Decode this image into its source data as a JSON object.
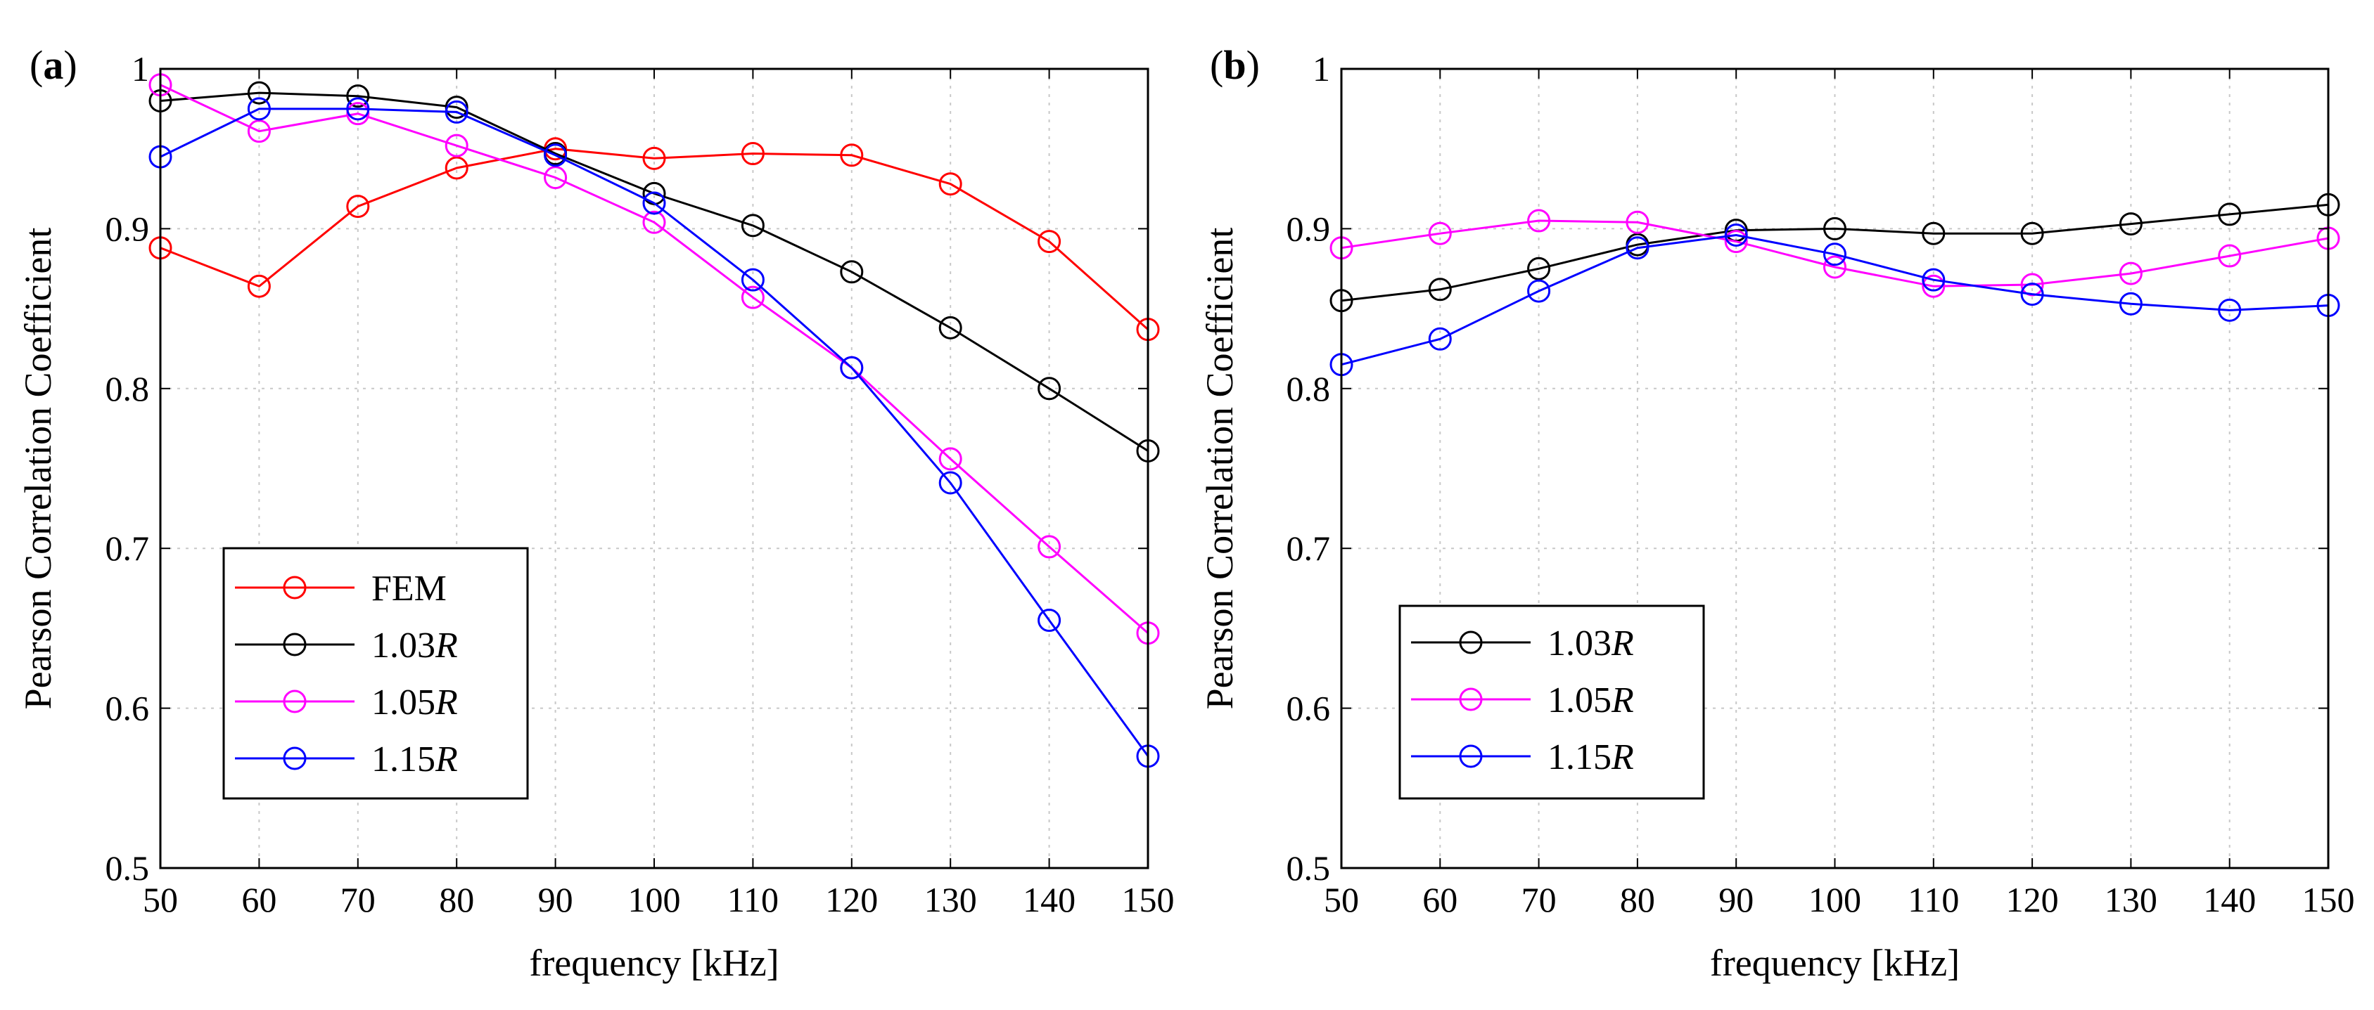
{
  "chart_data": [
    {
      "panel_label": "(a)",
      "type": "line",
      "xlabel": "frequency [kHz]",
      "ylabel": "Pearson Correlation Coefficient",
      "x": [
        50,
        60,
        70,
        80,
        90,
        100,
        110,
        120,
        130,
        140,
        150
      ],
      "xlim": [
        50,
        150
      ],
      "ylim": [
        0.5,
        1
      ],
      "xticks": [
        50,
        60,
        70,
        80,
        90,
        100,
        110,
        120,
        130,
        140,
        150
      ],
      "yticks": [
        0.5,
        0.6,
        0.7,
        0.8,
        0.9,
        1
      ],
      "ytick_labels": [
        "0.5",
        "0.6",
        "0.7",
        "0.8",
        "0.9",
        "1"
      ],
      "grid": true,
      "legend_position": "bottom-left",
      "series": [
        {
          "name": "FEM",
          "color": "#ff0000",
          "values": [
            0.888,
            0.864,
            0.914,
            0.938,
            0.95,
            0.944,
            0.947,
            0.946,
            0.928,
            0.892,
            0.837
          ]
        },
        {
          "name": "1.03",
          "name_italic": "R",
          "color": "#000000",
          "values": [
            0.98,
            0.985,
            0.983,
            0.976,
            0.947,
            0.922,
            0.902,
            0.873,
            0.838,
            0.8,
            0.761
          ]
        },
        {
          "name": "1.05",
          "name_italic": "R",
          "color": "#ff00ff",
          "values": [
            0.99,
            0.961,
            0.972,
            0.952,
            0.932,
            0.904,
            0.857,
            0.813,
            0.756,
            0.701,
            0.647
          ]
        },
        {
          "name": "1.15",
          "name_italic": "R",
          "color": "#0000ff",
          "values": [
            0.945,
            0.975,
            0.975,
            0.973,
            0.946,
            0.916,
            0.868,
            0.813,
            0.741,
            0.655,
            0.57
          ]
        }
      ]
    },
    {
      "panel_label": "(b)",
      "type": "line",
      "xlabel": "frequency [kHz]",
      "ylabel": "Pearson Correlation Coefficient",
      "x": [
        50,
        60,
        70,
        80,
        90,
        100,
        110,
        120,
        130,
        140,
        150
      ],
      "xlim": [
        50,
        150
      ],
      "ylim": [
        0.5,
        1
      ],
      "xticks": [
        50,
        60,
        70,
        80,
        90,
        100,
        110,
        120,
        130,
        140,
        150
      ],
      "yticks": [
        0.5,
        0.6,
        0.7,
        0.8,
        0.9,
        1
      ],
      "ytick_labels": [
        "0.5",
        "0.6",
        "0.7",
        "0.8",
        "0.9",
        "1"
      ],
      "grid": true,
      "legend_position": "bottom-left",
      "series": [
        {
          "name": "1.03",
          "name_italic": "R",
          "color": "#000000",
          "values": [
            0.855,
            0.862,
            0.875,
            0.89,
            0.899,
            0.9,
            0.897,
            0.897,
            0.903,
            0.909,
            0.915
          ]
        },
        {
          "name": "1.05",
          "name_italic": "R",
          "color": "#ff00ff",
          "values": [
            0.888,
            0.897,
            0.905,
            0.904,
            0.892,
            0.876,
            0.864,
            0.865,
            0.872,
            0.883,
            0.894
          ]
        },
        {
          "name": "1.15",
          "name_italic": "R",
          "color": "#0000ff",
          "values": [
            0.815,
            0.831,
            0.861,
            0.888,
            0.896,
            0.884,
            0.868,
            0.859,
            0.853,
            0.849,
            0.852
          ]
        }
      ]
    }
  ]
}
